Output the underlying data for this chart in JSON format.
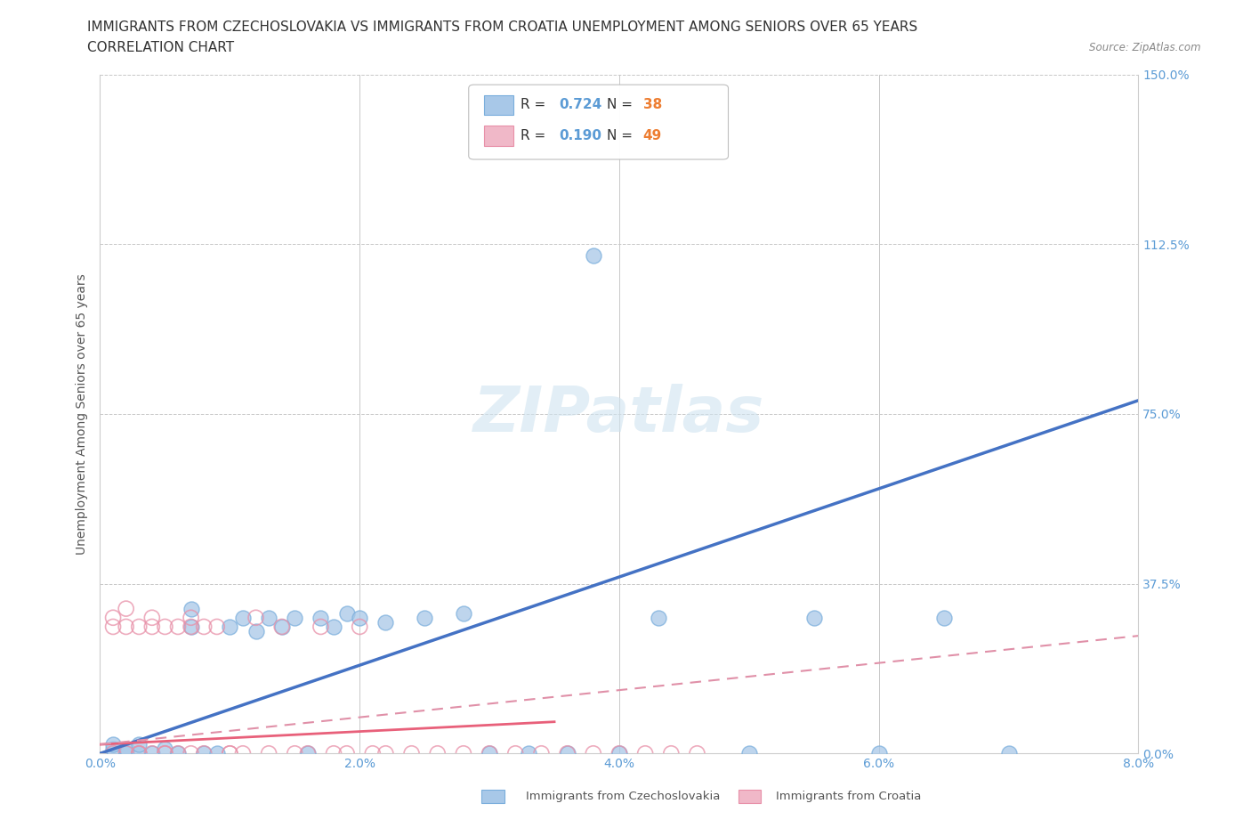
{
  "title_line1": "IMMIGRANTS FROM CZECHOSLOVAKIA VS IMMIGRANTS FROM CROATIA UNEMPLOYMENT AMONG SENIORS OVER 65 YEARS",
  "title_line2": "CORRELATION CHART",
  "source_text": "Source: ZipAtlas.com",
  "xlabel_cz": "Immigrants from Czechoslovakia",
  "xlabel_cr": "Immigrants from Croatia",
  "ylabel": "Unemployment Among Seniors over 65 years",
  "xlim": [
    0.0,
    0.08
  ],
  "ylim": [
    0.0,
    1.5
  ],
  "xticks": [
    0.0,
    0.02,
    0.04,
    0.06,
    0.08
  ],
  "xtick_labels": [
    "0.0%",
    "2.0%",
    "4.0%",
    "6.0%",
    "8.0%"
  ],
  "yticks": [
    0.0,
    0.375,
    0.75,
    1.125,
    1.5
  ],
  "ytick_labels": [
    "0.0%",
    "37.5%",
    "75.0%",
    "112.5%",
    "150.0%"
  ],
  "grid_color": "#c8c8c8",
  "watermark_text": "ZIPatlas",
  "czechoslovakia_color": "#a8c8e8",
  "czechoslovakia_edge": "#7aaedc",
  "croatia_color": "#f0b8c8",
  "croatia_edge": "#e890a8",
  "background_color": "#ffffff",
  "axis_color": "#cccccc",
  "tick_color": "#5b9bd5",
  "title_color": "#333333",
  "ylabel_color": "#555555",
  "title_fontsize": 11,
  "label_fontsize": 10,
  "tick_fontsize": 10,
  "legend_R_color": "#5b9bd5",
  "legend_N_color": "#ed7d31",
  "legend_label_color": "#333333",
  "cz_line_color": "#4472c4",
  "cr_line_solid_color": "#e8607a",
  "cr_line_dash_color": "#e090a8",
  "R_cz": 0.724,
  "N_cz": 38,
  "R_cr": 0.19,
  "N_cr": 49
}
